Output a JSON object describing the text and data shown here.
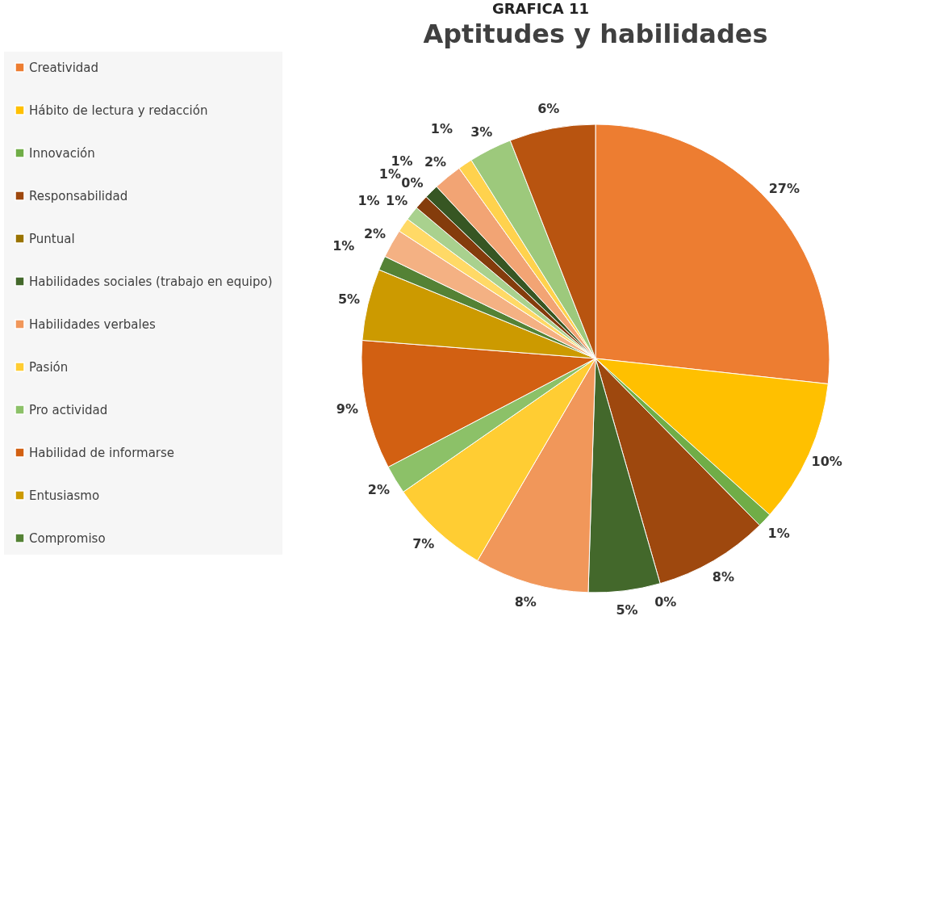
{
  "chart_data": {
    "type": "pie",
    "title": "Aptitudes y habilidades",
    "annotations": [
      "GRAFICA 11"
    ],
    "categories": [
      "Creatividad",
      "Hábito de lectura y redacción",
      "Innovación",
      "Responsabilidad",
      "Puntual",
      "Habilidades sociales (trabajo en equipo)",
      "Habilidades verbales",
      "Pasión",
      "Pro actividad",
      "Habilidad de informarse",
      "Entusiasmo",
      "Compromiso",
      null,
      null,
      null,
      null,
      null,
      null,
      null,
      null,
      null,
      null
    ],
    "values": [
      27,
      10,
      1,
      8,
      0,
      5,
      8,
      7,
      2,
      9,
      5,
      1,
      2,
      1,
      1,
      1,
      0,
      1,
      2,
      1,
      3,
      6
    ],
    "value_labels": [
      "27%",
      "10%",
      "1%",
      "8%",
      "0%",
      "5%",
      "8%",
      "7%",
      "2%",
      "9%",
      "5%",
      "1%",
      "2%",
      "1%",
      "1%",
      "1%",
      "0%",
      "1%",
      "2%",
      "1%",
      "3%",
      "6%"
    ],
    "colors": [
      "#ed7d31",
      "#ffc000",
      "#70ad47",
      "#9e480e",
      "#997300",
      "#43682b",
      "#f1975a",
      "#ffcd33",
      "#8cc168",
      "#d26012",
      "#cc9a00",
      "#548235",
      "#f4b183",
      "#ffd966",
      "#a9d18e",
      "#843c0c",
      "#7f6000",
      "#375623",
      "#f2a474",
      "#ffd24d",
      "#9dc97c",
      "#b85410"
    ],
    "legend": "left"
  }
}
